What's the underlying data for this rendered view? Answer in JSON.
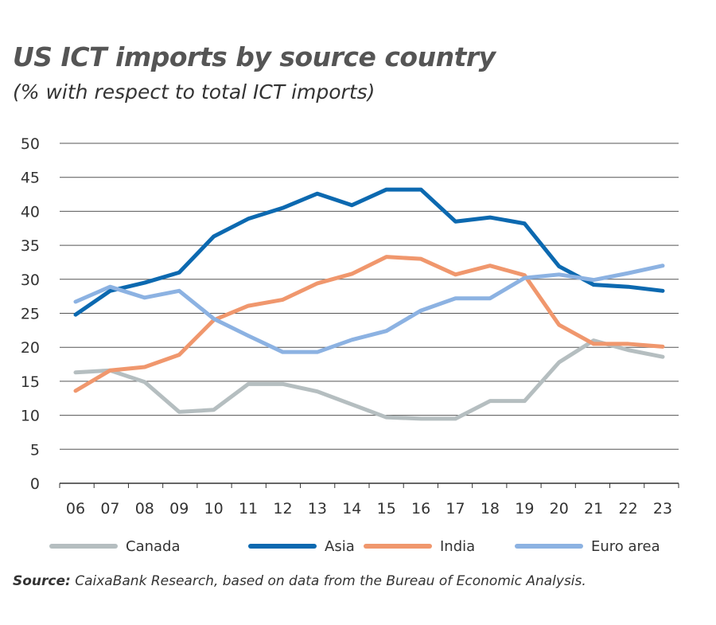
{
  "title": "US ICT imports by source country",
  "subtitle": "(% with respect to total ICT imports)",
  "source_label": "Source:",
  "source_text": " CaixaBank Research, based on data from the Bureau of Economic Analysis.",
  "chart_data": {
    "type": "line",
    "categories": [
      "06",
      "07",
      "08",
      "09",
      "10",
      "11",
      "12",
      "13",
      "14",
      "15",
      "16",
      "17",
      "18",
      "19",
      "20",
      "21",
      "22",
      "23"
    ],
    "ylim": [
      0,
      50
    ],
    "yticks": [
      0,
      5,
      10,
      15,
      20,
      25,
      30,
      35,
      40,
      45,
      50
    ],
    "grid": true,
    "legend": "bottom",
    "series": [
      {
        "name": "Canada",
        "color": "#b5bec0",
        "values": [
          16.3,
          16.6,
          14.9,
          10.5,
          10.8,
          14.6,
          14.6,
          13.5,
          11.6,
          9.7,
          9.5,
          9.5,
          12.1,
          12.1,
          17.8,
          21.0,
          19.6,
          18.6
        ]
      },
      {
        "name": "Asia",
        "color": "#0c69b0",
        "values": [
          24.8,
          28.3,
          29.5,
          31.0,
          36.3,
          38.9,
          40.5,
          42.6,
          40.9,
          43.2,
          43.2,
          38.5,
          39.1,
          38.2,
          31.9,
          29.2,
          28.9,
          28.3
        ]
      },
      {
        "name": "India",
        "color": "#f0976d",
        "values": [
          13.6,
          16.6,
          17.1,
          18.9,
          24.0,
          26.1,
          27.0,
          29.4,
          30.8,
          33.3,
          33.0,
          30.7,
          32.0,
          30.6,
          23.3,
          20.5,
          20.5,
          20.1
        ]
      },
      {
        "name": "Euro area",
        "color": "#8cb2e2",
        "values": [
          26.7,
          28.9,
          27.3,
          28.3,
          24.2,
          21.7,
          19.3,
          19.3,
          21.1,
          22.4,
          25.4,
          27.2,
          27.2,
          30.2,
          30.7,
          29.9,
          30.9,
          32.0
        ]
      }
    ]
  }
}
